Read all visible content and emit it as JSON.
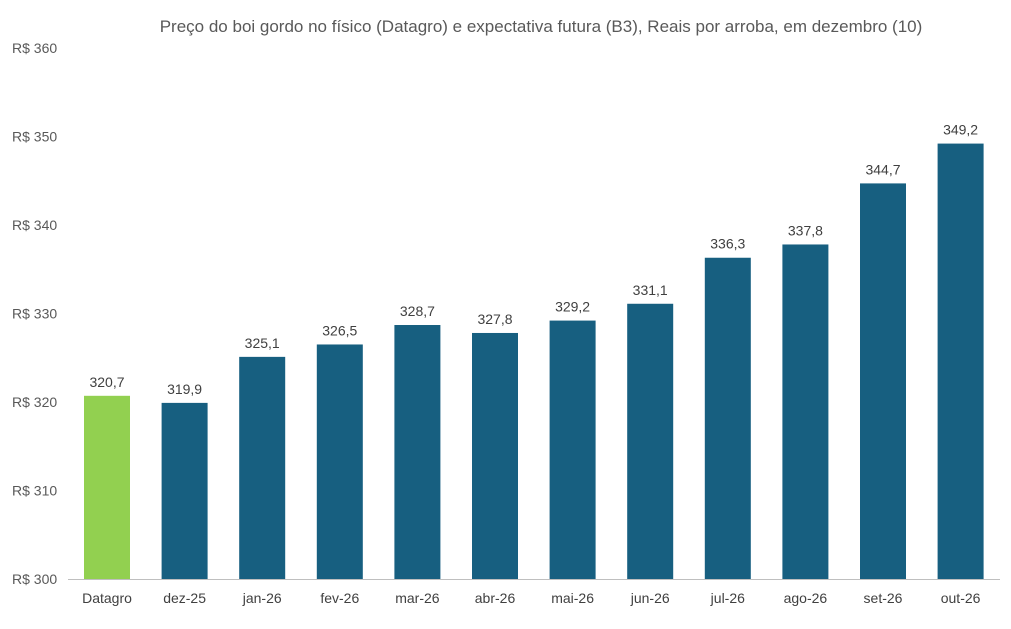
{
  "chart_data": {
    "type": "bar",
    "title": "Preço do boi gordo no físico (Datagro)  e expectativa futura (B3), Reais por arroba, em dezembro (10)",
    "xlabel": "",
    "ylabel": "",
    "ylim": [
      300,
      360
    ],
    "yticks": [
      300,
      310,
      320,
      330,
      340,
      350,
      360
    ],
    "ytick_labels": [
      "R$ 300",
      "R$ 310",
      "R$ 320",
      "R$ 330",
      "R$ 340",
      "R$ 350",
      "R$ 360"
    ],
    "grid": false,
    "categories": [
      "Datagro",
      "dez-25",
      "jan-26",
      "fev-26",
      "mar-26",
      "abr-26",
      "mai-26",
      "jun-26",
      "jul-26",
      "ago-26",
      "set-26",
      "out-26"
    ],
    "values": [
      320.7,
      319.9,
      325.1,
      326.5,
      328.7,
      327.8,
      329.2,
      331.1,
      336.3,
      337.8,
      344.7,
      349.2
    ],
    "value_labels": [
      "320,7",
      "319,9",
      "325,1",
      "326,5",
      "328,7",
      "327,8",
      "329,2",
      "331,1",
      "336,3",
      "337,8",
      "344,7",
      "349,2"
    ],
    "colors": {
      "highlight": "#92D050",
      "default": "#175F80",
      "axis": "#BFBFBF"
    },
    "highlight_index": 0
  }
}
